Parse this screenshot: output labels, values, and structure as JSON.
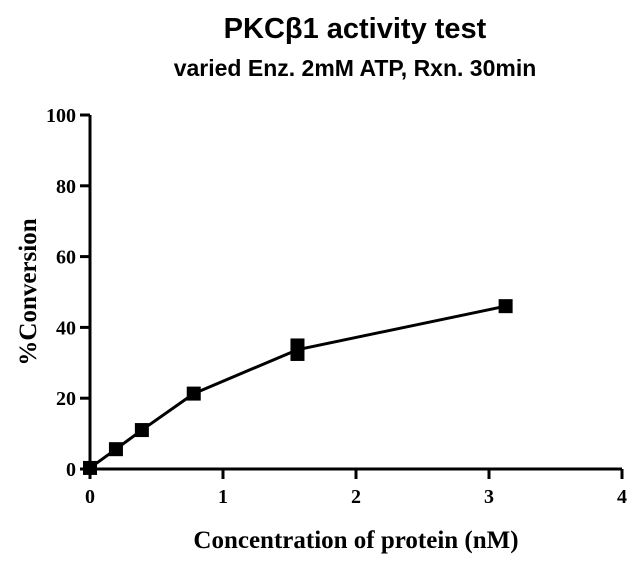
{
  "chart_data": {
    "type": "scatter",
    "title": "PKCβ1 activity test",
    "subtitle": "varied Enz. 2mM ATP, Rxn. 30min",
    "xlabel": "Concentration of protein (nM)",
    "ylabel": "%Conversion",
    "xlim": [
      0,
      4
    ],
    "ylim": [
      0,
      100
    ],
    "xticks": [
      0,
      1,
      2,
      3,
      4
    ],
    "yticks": [
      0,
      20,
      40,
      60,
      80,
      100
    ],
    "grid": false,
    "colors": {
      "series": "#000000"
    },
    "series": [
      {
        "points": [
          {
            "x": 0,
            "y": 0.3
          },
          {
            "x": 0.195,
            "y": 5.6
          },
          {
            "x": 0.39,
            "y": 11
          },
          {
            "x": 0.78,
            "y": 21.3
          },
          {
            "x": 1.56,
            "y": 32.5
          },
          {
            "x": 1.56,
            "y": 34.9
          },
          {
            "x": 3.125,
            "y": 46
          }
        ],
        "line": [
          {
            "x": 0,
            "y": 0.3
          },
          {
            "x": 0.195,
            "y": 5.6
          },
          {
            "x": 0.39,
            "y": 11
          },
          {
            "x": 0.78,
            "y": 21.3
          },
          {
            "x": 1.56,
            "y": 33.7
          },
          {
            "x": 3.125,
            "y": 46
          }
        ]
      }
    ]
  }
}
